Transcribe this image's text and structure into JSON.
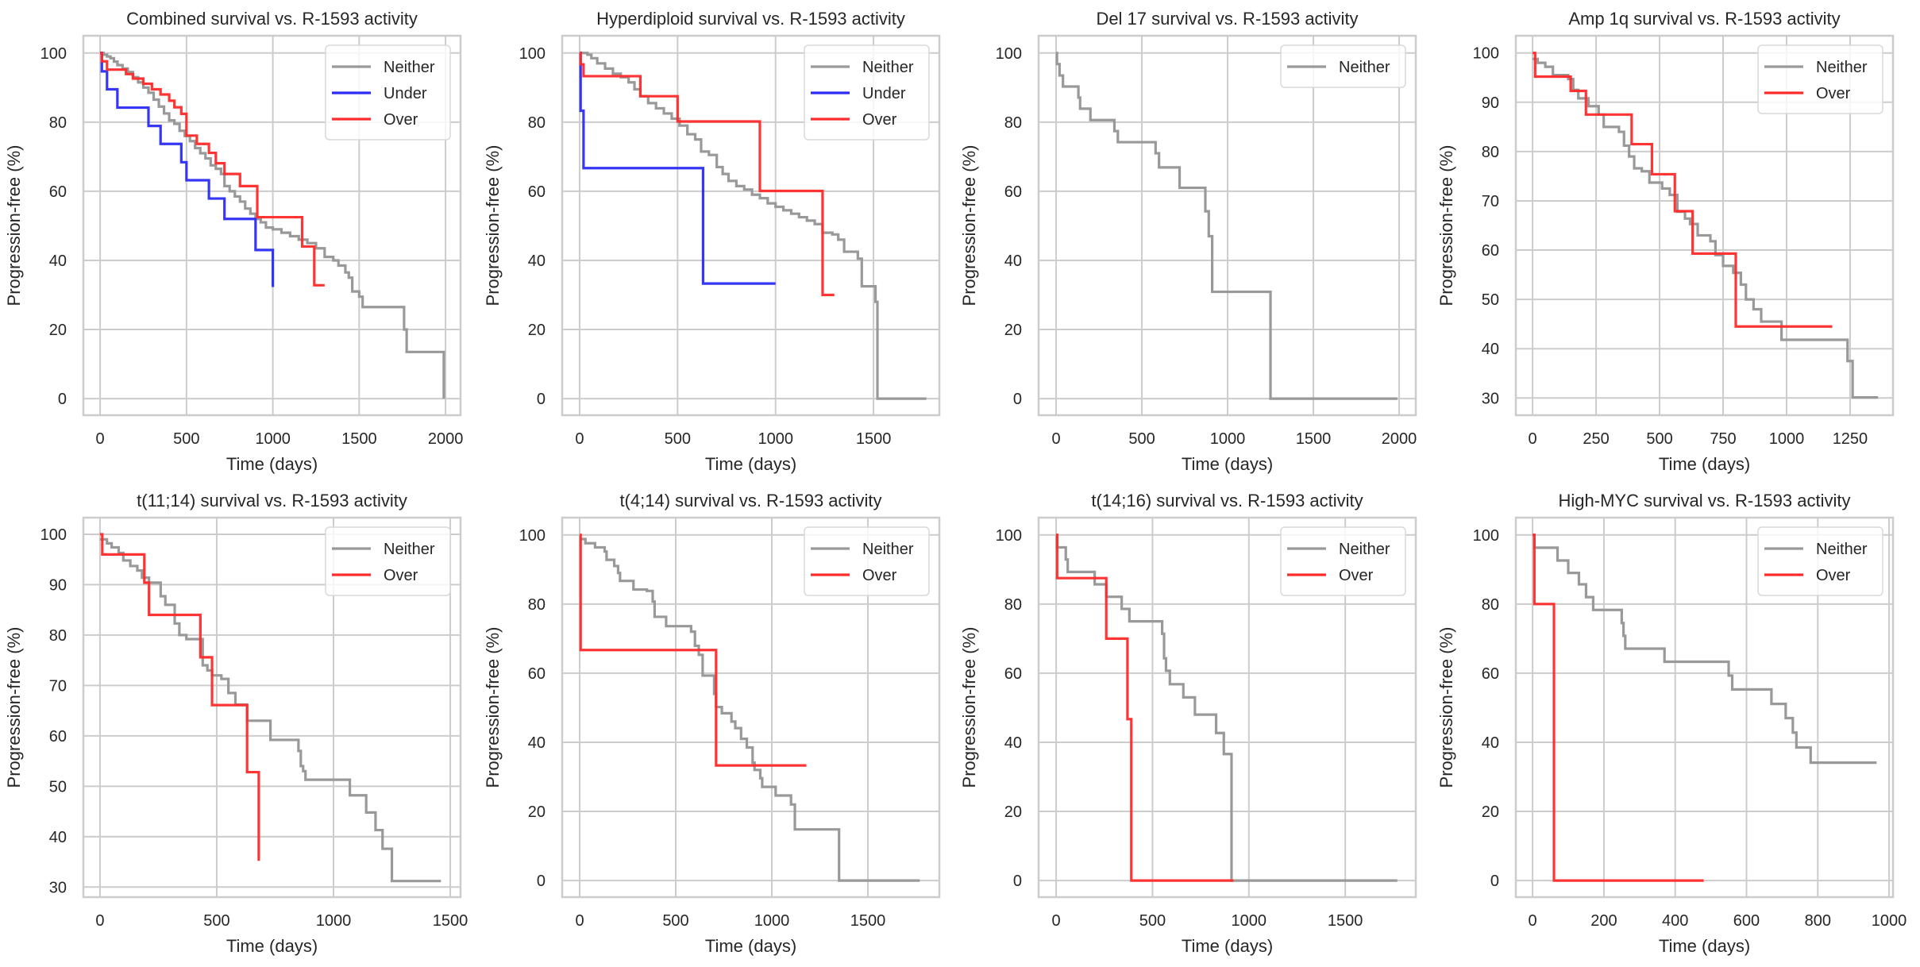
{
  "figure": {
    "background": "#ffffff",
    "axes_facecolor": "#ffffff",
    "grid_color": "#cccccc",
    "spine_color": "#cccccc",
    "series_colors": {
      "Neither": "#999999",
      "Under": "#2b2bf5",
      "Over": "#ff2a2a"
    }
  },
  "chart_data": [
    {
      "type": "line",
      "style": "step",
      "title": "Combined survival vs. R-1593 activity",
      "xlabel": "Time (days)",
      "ylabel": "Progression-free (%)",
      "xlim": [
        -97,
        2087
      ],
      "ylim": [
        -4.8,
        105
      ],
      "xticks": [
        0,
        500,
        1000,
        1500,
        2000
      ],
      "yticks": [
        0,
        20,
        40,
        60,
        80,
        100
      ],
      "grid": true,
      "legend": {
        "position": "top-right",
        "entries": [
          "Neither",
          "Under",
          "Over"
        ]
      },
      "series": [
        {
          "name": "Neither",
          "x": [
            0,
            20,
            40,
            60,
            80,
            100,
            130,
            160,
            190,
            220,
            250,
            280,
            310,
            340,
            370,
            400,
            430,
            460,
            490,
            520,
            550,
            580,
            610,
            640,
            670,
            700,
            720,
            750,
            780,
            810,
            840,
            870,
            900,
            930,
            960,
            1000,
            1050,
            1100,
            1150,
            1200,
            1250,
            1300,
            1350,
            1380,
            1420,
            1440,
            1460,
            1500,
            1520,
            1760,
            1775,
            1990
          ],
          "y": [
            100,
            99.5,
            99,
            98.5,
            97.5,
            96.5,
            95.5,
            94.5,
            93,
            91.5,
            90,
            88.5,
            86.5,
            84.5,
            82.5,
            80.5,
            79.5,
            77.5,
            76,
            74.5,
            72.5,
            71,
            69.5,
            67.5,
            66.5,
            65,
            61.5,
            60,
            58.5,
            57,
            55,
            53.5,
            52,
            51,
            49.5,
            49,
            48,
            47,
            46,
            45,
            43.5,
            41,
            40,
            38.5,
            36.5,
            35,
            31,
            29.5,
            26.5,
            20,
            13.5,
            0
          ]
        },
        {
          "name": "Under",
          "x": [
            0,
            10,
            40,
            100,
            280,
            350,
            470,
            500,
            630,
            720,
            900,
            1000
          ],
          "y": [
            100,
            94.7,
            89.5,
            84.2,
            78.9,
            73.7,
            68.4,
            63.2,
            57.9,
            52,
            43,
            32.3
          ]
        },
        {
          "name": "Over",
          "x": [
            0,
            10,
            40,
            150,
            190,
            250,
            300,
            350,
            400,
            430,
            470,
            500,
            560,
            630,
            670,
            720,
            810,
            910,
            1170,
            1240,
            1300
          ],
          "y": [
            100,
            97.6,
            95.2,
            93.9,
            92.6,
            91.1,
            89.5,
            88,
            86.2,
            84.3,
            82.4,
            76.1,
            73.7,
            71.1,
            68.1,
            65,
            61.5,
            52.5,
            44,
            32.8,
            32.8
          ]
        }
      ]
    },
    {
      "type": "line",
      "style": "step",
      "title": "Hyperdiploid survival vs. R-1593 activity",
      "xlabel": "Time (days)",
      "ylabel": "Progression-free (%)",
      "xlim": [
        -89,
        1836
      ],
      "ylim": [
        -4.8,
        105
      ],
      "xticks": [
        0,
        500,
        1000,
        1500
      ],
      "yticks": [
        0,
        20,
        40,
        60,
        80,
        100
      ],
      "grid": true,
      "legend": {
        "position": "top-right",
        "entries": [
          "Neither",
          "Under",
          "Over"
        ]
      },
      "series": [
        {
          "name": "Neither",
          "x": [
            0,
            40,
            60,
            90,
            130,
            170,
            210,
            250,
            280,
            310,
            350,
            390,
            430,
            470,
            510,
            550,
            590,
            620,
            660,
            700,
            730,
            760,
            800,
            840,
            880,
            920,
            960,
            1000,
            1040,
            1080,
            1120,
            1160,
            1200,
            1240,
            1290,
            1320,
            1350,
            1380,
            1420,
            1440,
            1500,
            1510,
            1520,
            1770
          ],
          "y": [
            100,
            99.5,
            98.5,
            97,
            95.5,
            94,
            93,
            91.5,
            89.5,
            87.5,
            85.5,
            84,
            82.5,
            81,
            79,
            76.5,
            75,
            71.5,
            70.5,
            67,
            65,
            63,
            61.5,
            60.5,
            59,
            58,
            56.5,
            55.5,
            54.5,
            53.5,
            52.5,
            51.5,
            50.5,
            48,
            47.5,
            46,
            42.5,
            42.5,
            40.5,
            32.5,
            32.5,
            28,
            0,
            0
          ]
        },
        {
          "name": "Under",
          "x": [
            0,
            5,
            20,
            630,
            1000
          ],
          "y": [
            100,
            83.3,
            66.7,
            33.3,
            33.3
          ]
        },
        {
          "name": "Over",
          "x": [
            0,
            5,
            20,
            310,
            500,
            920,
            1240,
            1300
          ],
          "y": [
            100,
            96.7,
            93.3,
            87.5,
            80.2,
            60.1,
            30,
            30
          ]
        }
      ]
    },
    {
      "type": "line",
      "style": "step",
      "title": "Del 17 survival vs. R-1593 activity",
      "xlabel": "Time (days)",
      "ylabel": "Progression-free (%)",
      "xlim": [
        -102,
        2097
      ],
      "ylim": [
        -4.8,
        105
      ],
      "xticks": [
        0,
        500,
        1000,
        1500,
        2000
      ],
      "yticks": [
        0,
        20,
        40,
        60,
        80,
        100
      ],
      "grid": true,
      "legend": {
        "position": "top-right",
        "entries": [
          "Neither"
        ]
      },
      "series": [
        {
          "name": "Neither",
          "x": [
            0,
            5,
            20,
            40,
            130,
            140,
            200,
            340,
            360,
            580,
            600,
            720,
            870,
            890,
            910,
            1250,
            1990
          ],
          "y": [
            100,
            96.8,
            93.5,
            90.3,
            87.1,
            83.9,
            80.6,
            77.4,
            74.2,
            71,
            66.9,
            61,
            54.2,
            47,
            30.9,
            0,
            0
          ]
        }
      ]
    },
    {
      "type": "line",
      "style": "step",
      "title": "Amp 1q survival vs. R-1593 activity",
      "xlabel": "Time (days)",
      "ylabel": "Progression-free (%)",
      "xlim": [
        -66,
        1419
      ],
      "ylim": [
        26.5,
        103.5
      ],
      "xticks": [
        0,
        250,
        500,
        750,
        1000,
        1250
      ],
      "yticks": [
        30,
        40,
        50,
        60,
        70,
        80,
        90,
        100
      ],
      "grid": true,
      "legend": {
        "position": "top-right",
        "entries": [
          "Neither",
          "Over"
        ]
      },
      "series": [
        {
          "name": "Neither",
          "x": [
            0,
            20,
            50,
            80,
            140,
            160,
            180,
            220,
            260,
            280,
            340,
            360,
            380,
            400,
            430,
            460,
            510,
            540,
            570,
            600,
            620,
            650,
            700,
            720,
            750,
            790,
            820,
            840,
            870,
            900,
            980,
            1240,
            1260,
            1360
          ],
          "y": [
            98.8,
            98,
            97.2,
            95.5,
            94.7,
            92.5,
            90.8,
            89.2,
            87.5,
            85,
            84,
            81.2,
            79,
            76.6,
            76,
            73.7,
            72.5,
            71.2,
            67.8,
            66.4,
            65.3,
            63,
            61.8,
            59,
            56.8,
            55.4,
            53,
            50,
            48,
            45.5,
            41.8,
            37.5,
            30.1,
            30.1
          ]
        },
        {
          "name": "Over",
          "x": [
            0,
            10,
            150,
            210,
            390,
            470,
            560,
            630,
            800,
            1180
          ],
          "y": [
            100,
            95.2,
            92.3,
            87.5,
            81.5,
            75.4,
            67.9,
            59.3,
            44.5,
            44.5
          ]
        }
      ]
    },
    {
      "type": "line",
      "style": "step",
      "title": "t(11;14) survival vs. R-1593 activity",
      "xlabel": "Time (days)",
      "ylabel": "Progression-free (%)",
      "xlim": [
        -71,
        1544
      ],
      "ylim": [
        28,
        103.3
      ],
      "xticks": [
        0,
        500,
        1000,
        1500
      ],
      "yticks": [
        30,
        40,
        50,
        60,
        70,
        80,
        90,
        100
      ],
      "grid": true,
      "legend": {
        "position": "top-right",
        "entries": [
          "Neither",
          "Over"
        ]
      },
      "series": [
        {
          "name": "Neither",
          "x": [
            0,
            30,
            50,
            80,
            100,
            130,
            160,
            180,
            210,
            260,
            280,
            320,
            340,
            370,
            440,
            460,
            480,
            520,
            550,
            580,
            630,
            730,
            750,
            850,
            860,
            870,
            880,
            1070,
            1140,
            1180,
            1210,
            1250,
            1460
          ],
          "y": [
            99,
            98.2,
            97.4,
            96.3,
            94.8,
            93.7,
            92.8,
            91.4,
            90.4,
            87.7,
            86,
            82.3,
            80,
            79.2,
            74,
            73,
            72,
            71.3,
            68.5,
            66.2,
            63,
            59.2,
            59.2,
            57,
            54,
            53,
            51.3,
            48.2,
            44.8,
            41.3,
            37.6,
            31.2,
            31.2
          ]
        },
        {
          "name": "Over",
          "x": [
            0,
            10,
            190,
            210,
            430,
            480,
            630,
            680
          ],
          "y": [
            100,
            96,
            90.4,
            84,
            75.6,
            66.1,
            52.8,
            35.2
          ]
        }
      ]
    },
    {
      "type": "line",
      "style": "step",
      "title": "t(4;14) survival vs. R-1593 activity",
      "xlabel": "Time (days)",
      "ylabel": "Progression-free (%)",
      "xlim": [
        -91,
        1872
      ],
      "ylim": [
        -4.8,
        105
      ],
      "xticks": [
        0,
        500,
        1000,
        1500
      ],
      "yticks": [
        0,
        20,
        40,
        60,
        80,
        100
      ],
      "grid": true,
      "legend": {
        "position": "top-right",
        "entries": [
          "Neither",
          "Over"
        ]
      },
      "series": [
        {
          "name": "Neither",
          "x": [
            0,
            30,
            80,
            130,
            140,
            180,
            200,
            210,
            280,
            350,
            380,
            390,
            450,
            580,
            600,
            620,
            640,
            700,
            710,
            740,
            790,
            810,
            840,
            870,
            900,
            910,
            940,
            950,
            1020,
            1100,
            1120,
            1350,
            1770
          ],
          "y": [
            98.8,
            97.6,
            96.4,
            95.2,
            92.8,
            91,
            89,
            86.7,
            84.2,
            83.8,
            80.7,
            76.3,
            73.6,
            72,
            67.9,
            65.3,
            59.3,
            54,
            50.2,
            48.4,
            46,
            44.1,
            41,
            38.5,
            34.1,
            32,
            29.6,
            27.1,
            24.6,
            22,
            14.8,
            0,
            0
          ]
        },
        {
          "name": "Over",
          "x": [
            0,
            5,
            710,
            1180
          ],
          "y": [
            100,
            66.7,
            33.3,
            33.3
          ]
        }
      ]
    },
    {
      "type": "line",
      "style": "step",
      "title": "t(14;16) survival vs. R-1593 activity",
      "xlabel": "Time (days)",
      "ylabel": "Progression-free (%)",
      "xlim": [
        -91,
        1866
      ],
      "ylim": [
        -4.8,
        105
      ],
      "xticks": [
        0,
        500,
        1000,
        1500
      ],
      "yticks": [
        0,
        20,
        40,
        60,
        80,
        100
      ],
      "grid": true,
      "legend": {
        "position": "top-right",
        "entries": [
          "Neither",
          "Over"
        ]
      },
      "series": [
        {
          "name": "Neither",
          "x": [
            0,
            5,
            50,
            60,
            200,
            260,
            340,
            380,
            550,
            560,
            570,
            590,
            660,
            720,
            830,
            870,
            910,
            1770
          ],
          "y": [
            100,
            96.4,
            92.9,
            89.3,
            85.7,
            82.1,
            78.6,
            75,
            71.4,
            64.3,
            60.7,
            56.8,
            53,
            48,
            42.7,
            36.6,
            0,
            0
          ]
        },
        {
          "name": "Over",
          "x": [
            0,
            5,
            260,
            370,
            390,
            920
          ],
          "y": [
            100,
            87.5,
            70,
            46.7,
            0,
            0
          ]
        }
      ]
    },
    {
      "type": "line",
      "style": "step",
      "title": "High-MYC survival vs. R-1593 activity",
      "xlabel": "Time (days)",
      "ylabel": "Progression-free (%)",
      "xlim": [
        -47,
        1011
      ],
      "ylim": [
        -4.8,
        105
      ],
      "xticks": [
        0,
        200,
        400,
        600,
        800,
        1000
      ],
      "yticks": [
        0,
        20,
        40,
        60,
        80,
        100
      ],
      "grid": true,
      "legend": {
        "position": "top-right",
        "entries": [
          "Neither",
          "Over"
        ]
      },
      "series": [
        {
          "name": "Neither",
          "x": [
            0,
            5,
            70,
            100,
            130,
            150,
            170,
            250,
            255,
            260,
            370,
            550,
            560,
            670,
            710,
            730,
            740,
            780,
            965
          ],
          "y": [
            100,
            96.3,
            92.6,
            89,
            85.7,
            82,
            78.3,
            74.5,
            70.8,
            67.1,
            63.3,
            59.3,
            55.3,
            51.1,
            47,
            42.8,
            38.5,
            34.1,
            34.1
          ]
        },
        {
          "name": "Over",
          "x": [
            0,
            5,
            60,
            480
          ],
          "y": [
            100,
            80,
            0,
            0
          ]
        }
      ]
    }
  ]
}
